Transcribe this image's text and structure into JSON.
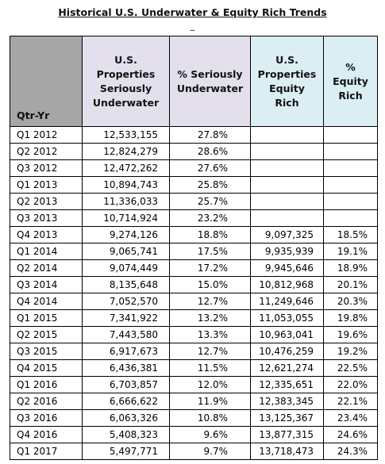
{
  "header": {
    "title": "Historical U.S. Underwater & Equity Rich Trends",
    "note": "_"
  },
  "table": {
    "columns": [
      [
        "Qtr-Yr"
      ],
      [
        "U.S.",
        "Properties",
        "Seriously",
        "Underwater"
      ],
      [
        "% Seriously",
        "Underwater"
      ],
      [
        "U.S.",
        "Properties",
        "Equity Rich"
      ],
      [
        "%",
        "Equity",
        "Rich"
      ]
    ],
    "rows": [
      [
        "Q1 2012",
        "12,533,155",
        "27.8%"
      ],
      [
        "Q2 2012",
        "12,824,279",
        "28.6%"
      ],
      [
        "Q3 2012",
        "12,472,262",
        "27.6%"
      ],
      [
        "Q1 2013",
        "10,894,743",
        "25.8%"
      ],
      [
        "Q2 2013",
        "11,336,033",
        "25.7%"
      ],
      [
        "Q3 2013",
        "10,714,924",
        "23.2%"
      ],
      [
        "Q4 2013",
        "9,274,126",
        "18.8%",
        "9,097,325",
        "18.5%"
      ],
      [
        "Q1 2014",
        "9,065,741",
        "17.5%",
        "9,935,939",
        "19.1%"
      ],
      [
        "Q2 2014",
        "9,074,449",
        "17.2%",
        "9,945,646",
        "18.9%"
      ],
      [
        "Q3 2014",
        "8,135,648",
        "15.0%",
        "10,812,968",
        "20.1%"
      ],
      [
        "Q4 2014",
        "7,052,570",
        "12.7%",
        "11,249,646",
        "20.3%"
      ],
      [
        "Q1 2015",
        "7,341,922",
        "13.2%",
        "11,053,055",
        "19.8%"
      ],
      [
        "Q2 2015",
        "7,443,580",
        "13.3%",
        "10,963,041",
        "19.6%"
      ],
      [
        "Q3 2015",
        "6,917,673",
        "12.7%",
        "10,476,259",
        "19.2%"
      ],
      [
        "Q4 2015",
        "6,436,381",
        "11.5%",
        "12,621,274",
        "22.5%"
      ],
      [
        "Q1 2016",
        "6,703,857",
        "12.0%",
        "12,335,651",
        "22.0%"
      ],
      [
        "Q2 2016",
        "6,666,622",
        "11.9%",
        "12,383,345",
        "22.1%"
      ],
      [
        "Q3 2016",
        "6,063,326",
        "10.8%",
        "13,125,367",
        "23.4%"
      ],
      [
        "Q4 2016",
        "5,408,323",
        "9.6%",
        "13,877,315",
        "24.6%"
      ],
      [
        "Q1 2017",
        "5,497,771",
        "9.7%",
        "13,718,473",
        "24.3%"
      ]
    ]
  }
}
